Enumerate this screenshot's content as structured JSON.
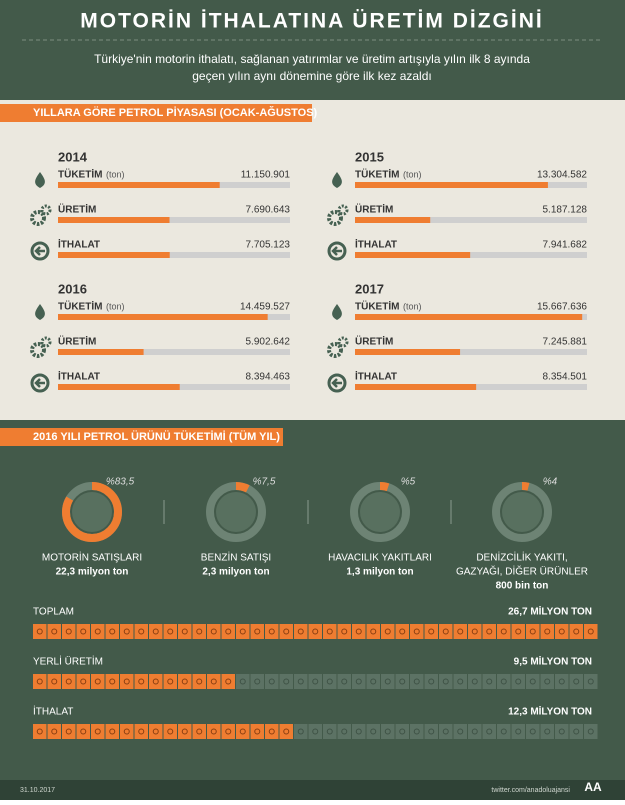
{
  "header": {
    "title": "MOTORİN İTHALATINA ÜRETİM DİZGİNİ",
    "subtitle": [
      "Türkiye'nin motorin ithalatı, sağlanan yatırımlar ve üretim artışıyla yılın ilk 8 ayında",
      "geçen yılın aynı dönemine göre ilk kez azaldı"
    ]
  },
  "market": {
    "title": "YILLARA GÖRE PETROL PİYASASI (OCAK-AĞUSTOS)",
    "xlim": [
      0,
      16000000
    ],
    "unit": "(ton)",
    "panels": [
      {
        "year": "2014",
        "rows": [
          {
            "label": "TÜKETİM",
            "value": 11150901,
            "value_label": "11.150.901"
          },
          {
            "label": "ÜRETİM",
            "value": 7690643,
            "value_label": "7.690.643"
          },
          {
            "label": "İTHALAT",
            "value": 7705123,
            "value_label": "7.705.123"
          }
        ]
      },
      {
        "year": "2015",
        "rows": [
          {
            "label": "TÜKETİM",
            "value": 13304582,
            "value_label": "13.304.582"
          },
          {
            "label": "ÜRETİM",
            "value": 5187128,
            "value_label": "5.187.128"
          },
          {
            "label": "İTHALAT",
            "value": 7941682,
            "value_label": "7.941.682"
          }
        ]
      },
      {
        "year": "2016",
        "rows": [
          {
            "label": "TÜKETİM",
            "value": 14459527,
            "value_label": "14.459.527"
          },
          {
            "label": "ÜRETİM",
            "value": 5902642,
            "value_label": "5.902.642"
          },
          {
            "label": "İTHALAT",
            "value": 8394463,
            "value_label": "8.394.463"
          }
        ]
      },
      {
        "year": "2017",
        "rows": [
          {
            "label": "TÜKETİM",
            "value": 15667636,
            "value_label": "15.667.636"
          },
          {
            "label": "ÜRETİM",
            "value": 7245881,
            "value_label": "7.245.881"
          },
          {
            "label": "İTHALAT",
            "value": 8354501,
            "value_label": "8.354.501"
          }
        ]
      }
    ]
  },
  "consumption": {
    "title": "2016 YILI PETROL ÜRÜNÜ TÜKETİMİ (TÜM YIL)",
    "items": [
      {
        "value": 83.5,
        "value_label": "%83,5",
        "name": [
          "MOTORİN SATIŞLARI"
        ],
        "amount": "22,3 milyon ton"
      },
      {
        "value": 7.5,
        "value_label": "%7,5",
        "name": [
          "BENZİN SATIŞI"
        ],
        "amount": "2,3 milyon ton"
      },
      {
        "value": 5,
        "value_label": "%5",
        "name": [
          "HAVACILIK YAKITLARI"
        ],
        "amount": "1,3 milyon ton"
      },
      {
        "value": 4,
        "value_label": "%4",
        "name": [
          "DENİZCİLİK YAKITI,",
          "GAZYAĞI, DİĞER ÜRÜNLER"
        ],
        "amount": "800 bin ton"
      }
    ]
  },
  "totals": [
    {
      "label": "TOPLAM",
      "value": 26.7,
      "value_label": "26,7 MİLYON  TON"
    },
    {
      "label": "YERLİ ÜRETİM",
      "value": 9.5,
      "value_label": "9,5 MİLYON TON"
    },
    {
      "label": "İTHALAT",
      "value": 12.3,
      "value_label": "12,3 MİLYON TON"
    }
  ],
  "footer": {
    "date": "31.10.2017",
    "source": "twitter.com/anadoluajansi",
    "logo": "AA"
  }
}
